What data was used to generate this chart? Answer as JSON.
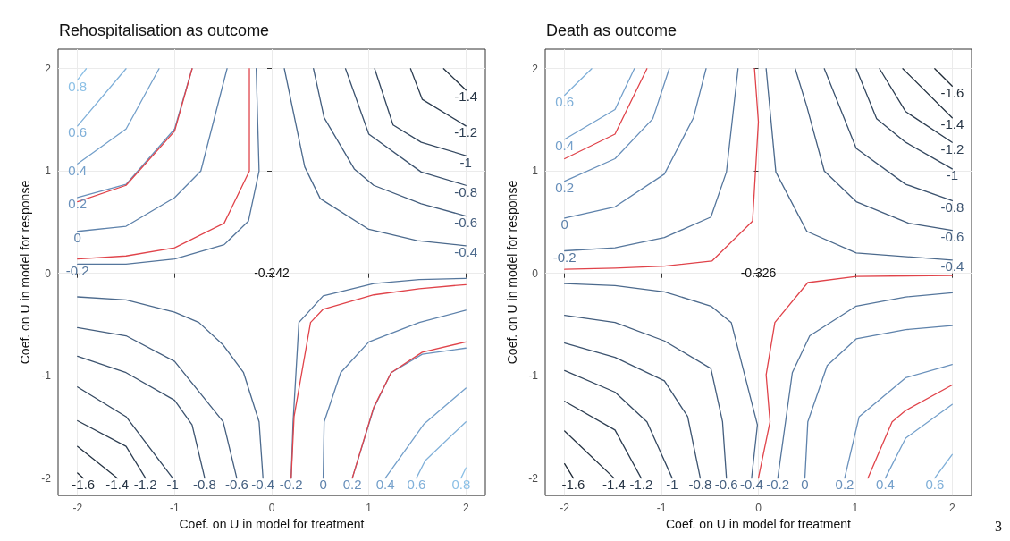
{
  "chart_data": [
    {
      "type": "line",
      "title": "Rehospitalisation as outcome",
      "xlabel": "Coef. on U in model for treatment",
      "ylabel": "Coef. on U in model for response",
      "xlim": [
        -2.2,
        2.2
      ],
      "ylim": [
        -2.17,
        2.19
      ],
      "xticks": [
        -2,
        -1,
        0,
        1,
        2
      ],
      "yticks": [
        -2,
        -1,
        0,
        1,
        2
      ],
      "grid": true,
      "annotations": [
        "-0.242"
      ],
      "series": [
        {
          "name": "0.8",
          "color": "#8cc0e6",
          "x": [
            -2,
            -1.91
          ],
          "values": [
            1.89,
            2
          ]
        },
        {
          "name": "0.6",
          "color": "#80b0d9",
          "x": [
            -2,
            -1.5
          ],
          "values": [
            1.44,
            2
          ]
        },
        {
          "name": "0.4",
          "color": "#74a0cb",
          "x": [
            -2,
            -1.5,
            -1.16
          ],
          "values": [
            1.07,
            1.41,
            2
          ]
        },
        {
          "name": "0.2",
          "color": "#6990bb",
          "x": [
            -2,
            -1.5,
            -1,
            -0.82
          ],
          "values": [
            0.74,
            0.87,
            1.41,
            2
          ]
        },
        {
          "color": "#e0434a",
          "x": [
            -2,
            -1.5,
            -1,
            -0.82
          ],
          "values": [
            0.7,
            0.86,
            1.39,
            2
          ]
        },
        {
          "name": "0",
          "color": "#5e82ab",
          "x": [
            -2,
            -1.5,
            -1,
            -0.73,
            -0.46
          ],
          "values": [
            0.41,
            0.46,
            0.74,
            1,
            2
          ]
        },
        {
          "color": "#e0434a",
          "x": [
            -2,
            -1.5,
            -1,
            -0.49,
            -0.23,
            -0.23
          ],
          "values": [
            0.14,
            0.17,
            0.25,
            0.49,
            1,
            2
          ]
        },
        {
          "name": "-0.2",
          "color": "#55769c",
          "x": [
            -2,
            -1.5,
            -1,
            -0.49,
            -0.24,
            -0.13,
            -0.16
          ],
          "values": [
            0.09,
            0.09,
            0.14,
            0.28,
            0.51,
            1,
            2
          ]
        },
        {
          "name": "-0.4",
          "color": "#4c6a8d",
          "x": [
            2,
            1.5,
            1,
            0.5,
            0.34,
            0.13
          ],
          "values": [
            0.27,
            0.32,
            0.43,
            0.73,
            1.04,
            2
          ]
        },
        {
          "name": "-0.6",
          "color": "#445e7e",
          "x": [
            2,
            1.54,
            1.05,
            0.85,
            0.54,
            0.43
          ],
          "values": [
            0.56,
            0.68,
            0.86,
            1.02,
            1.52,
            2
          ]
        },
        {
          "name": "-0.8",
          "color": "#3c536f",
          "x": [
            2,
            1.54,
            1,
            0.76
          ],
          "values": [
            0.86,
            0.99,
            1.36,
            2
          ]
        },
        {
          "name": "-1",
          "color": "#344860",
          "x": [
            2,
            1.54,
            1.25,
            1.06
          ],
          "values": [
            1.15,
            1.28,
            1.45,
            2
          ]
        },
        {
          "name": "-1.2",
          "color": "#2d3e52",
          "x": [
            2,
            1.55,
            1.43
          ],
          "values": [
            1.44,
            1.7,
            2
          ]
        },
        {
          "name": "-1.4",
          "color": "#263444",
          "x": [
            2,
            1.77
          ],
          "values": [
            1.79,
            2
          ]
        },
        {
          "name": "-0.4",
          "color": "#4c6a8d",
          "x": [
            -0.09,
            -0.13,
            -0.29,
            -0.5,
            -0.75,
            -1,
            -1.5,
            -2
          ],
          "values": [
            -2,
            -1.45,
            -0.97,
            -0.7,
            -0.48,
            -0.38,
            -0.26,
            -0.23
          ]
        },
        {
          "name": "-0.6",
          "color": "#445e7e",
          "x": [
            -0.36,
            -0.5,
            -1,
            -1.5,
            -2
          ],
          "values": [
            -2,
            -1.45,
            -0.86,
            -0.61,
            -0.53
          ]
        },
        {
          "name": "-0.8",
          "color": "#3c536f",
          "x": [
            -0.69,
            -0.82,
            -1,
            -1.5,
            -2
          ],
          "values": [
            -2,
            -1.48,
            -1.24,
            -0.97,
            -0.81
          ]
        },
        {
          "name": "-1",
          "color": "#344860",
          "x": [
            -1.02,
            -1.5,
            -2
          ],
          "values": [
            -2,
            -1.4,
            -1.11
          ]
        },
        {
          "name": "-1.2",
          "color": "#2d3e52",
          "x": [
            -1.3,
            -1.5,
            -2
          ],
          "values": [
            -2,
            -1.69,
            -1.44
          ]
        },
        {
          "name": "-1.4",
          "color": "#263444",
          "x": [
            -1.59,
            -2
          ],
          "values": [
            -2,
            -1.69
          ]
        },
        {
          "name": "-1.6",
          "color": "#1f2a36",
          "x": [
            -1.94,
            -2
          ],
          "values": [
            -2,
            -1.95
          ]
        },
        {
          "name": "-0.2",
          "color": "#55769c",
          "x": [
            0.2,
            0.22,
            0.28,
            0.53,
            1.05,
            1.52,
            2
          ],
          "values": [
            -2,
            -1.45,
            -0.48,
            -0.22,
            -0.1,
            -0.06,
            -0.05
          ]
        },
        {
          "color": "#e0434a",
          "x": [
            0.2,
            0.23,
            0.4,
            0.53,
            1.05,
            1.52,
            2
          ],
          "values": [
            -2,
            -1.4,
            -0.48,
            -0.35,
            -0.21,
            -0.15,
            -0.11
          ]
        },
        {
          "name": "0",
          "color": "#5e82ab",
          "x": [
            0.53,
            0.54,
            0.71,
            1,
            1.52,
            2
          ],
          "values": [
            -2,
            -1.45,
            -0.97,
            -0.67,
            -0.48,
            -0.36
          ]
        },
        {
          "name": "0.2",
          "color": "#6990bb",
          "x": [
            0.83,
            1.05,
            1.23,
            1.55,
            2
          ],
          "values": [
            -2,
            -1.32,
            -0.97,
            -0.79,
            -0.73
          ]
        },
        {
          "color": "#e0434a",
          "x": [
            0.83,
            1.05,
            1.23,
            1.55,
            2
          ],
          "values": [
            -2,
            -1.31,
            -0.97,
            -0.77,
            -0.67
          ]
        },
        {
          "name": "0.4",
          "color": "#74a0cb",
          "x": [
            1.17,
            1.57,
            2
          ],
          "values": [
            -2,
            -1.47,
            -1.12
          ]
        },
        {
          "name": "0.6",
          "color": "#80b0d9",
          "x": [
            1.49,
            1.58,
            2
          ],
          "values": [
            -2,
            -1.83,
            -1.45
          ]
        },
        {
          "name": "0.8",
          "color": "#8cc0e6",
          "x": [
            1.95,
            2
          ],
          "values": [
            -2,
            -1.9
          ]
        }
      ]
    },
    {
      "type": "line",
      "title": "Death as outcome",
      "xlabel": "Coef. on U in model for treatment",
      "ylabel": "Coef. on U in model for response",
      "xlim": [
        -2.2,
        2.2
      ],
      "ylim": [
        -2.17,
        2.19
      ],
      "xticks": [
        -2,
        -1,
        0,
        1,
        2
      ],
      "yticks": [
        -2,
        -1,
        0,
        1,
        2
      ],
      "grid": true,
      "annotations": [
        "-0.326",
        "3"
      ],
      "series": [
        {
          "name": "0.6",
          "color": "#80b0d9",
          "x": [
            -2,
            -1.72
          ],
          "values": [
            1.74,
            2
          ]
        },
        {
          "name": "0.4",
          "color": "#74a0cb",
          "x": [
            -2,
            -1.48,
            -1.28
          ],
          "values": [
            1.31,
            1.6,
            2
          ]
        },
        {
          "color": "#e0434a",
          "x": [
            -2,
            -1.48,
            -1.15
          ],
          "values": [
            1.12,
            1.36,
            2
          ]
        },
        {
          "name": "0.2",
          "color": "#6990bb",
          "x": [
            -2,
            -1.48,
            -1.09,
            -0.92
          ],
          "values": [
            0.9,
            1.12,
            1.51,
            2
          ]
        },
        {
          "name": "0",
          "color": "#5e82ab",
          "x": [
            -2,
            -1.48,
            -0.97,
            -0.67,
            -0.54
          ],
          "values": [
            0.54,
            0.65,
            0.97,
            1.52,
            2
          ]
        },
        {
          "name": "-0.2",
          "color": "#55769c",
          "x": [
            -2,
            -1.48,
            -0.97,
            -0.49,
            -0.33,
            -0.21
          ],
          "values": [
            0.22,
            0.25,
            0.35,
            0.55,
            0.99,
            2
          ]
        },
        {
          "color": "#e0434a",
          "x": [
            -2,
            -1.48,
            -0.97,
            -0.48,
            -0.06,
            0,
            -0.04
          ],
          "values": [
            0.04,
            0.05,
            0.07,
            0.12,
            0.51,
            1.48,
            2
          ]
        },
        {
          "name": "-0.4",
          "color": "#4c6a8d",
          "x": [
            2,
            1.01,
            0.5,
            0.18,
            0.08
          ],
          "values": [
            0.13,
            0.2,
            0.41,
            0.99,
            2
          ]
        },
        {
          "name": "-0.6",
          "color": "#445e7e",
          "x": [
            2,
            1.55,
            1.01,
            0.68,
            0.5,
            0.38
          ],
          "values": [
            0.42,
            0.49,
            0.7,
            1,
            1.63,
            2
          ]
        },
        {
          "name": "-0.8",
          "color": "#3c536f",
          "x": [
            2,
            1.52,
            1.01,
            0.68
          ],
          "values": [
            0.71,
            0.87,
            1.22,
            2
          ]
        },
        {
          "name": "-1",
          "color": "#344860",
          "x": [
            2,
            1.52,
            1.22,
            1.01
          ],
          "values": [
            1.02,
            1.28,
            1.51,
            2
          ]
        },
        {
          "name": "-1.2",
          "color": "#2d3e52",
          "x": [
            2,
            1.52,
            1.25
          ],
          "values": [
            1.28,
            1.58,
            2
          ]
        },
        {
          "name": "-1.4",
          "color": "#263444",
          "x": [
            2,
            1.49
          ],
          "values": [
            1.52,
            2
          ]
        },
        {
          "name": "-1.6",
          "color": "#1f2a36",
          "x": [
            2,
            1.82
          ],
          "values": [
            1.83,
            2
          ]
        },
        {
          "name": "-0.4",
          "color": "#4c6a8d",
          "x": [
            -0.07,
            -0.01,
            -0.28,
            -0.49,
            -0.97,
            -1.48,
            -2
          ],
          "values": [
            -2,
            -1.48,
            -0.48,
            -0.32,
            -0.18,
            -0.12,
            -0.1
          ]
        },
        {
          "name": "-0.6",
          "color": "#445e7e",
          "x": [
            -0.33,
            -0.37,
            -0.49,
            -0.97,
            -1.48,
            -2
          ],
          "values": [
            -2,
            -1.45,
            -0.93,
            -0.66,
            -0.48,
            -0.41
          ]
        },
        {
          "name": "-0.8",
          "color": "#3c536f",
          "x": [
            -0.6,
            -0.73,
            -0.97,
            -1.48,
            -2
          ],
          "values": [
            -2,
            -1.4,
            -1.05,
            -0.82,
            -0.68
          ]
        },
        {
          "name": "-1",
          "color": "#344860",
          "x": [
            -0.89,
            -1.15,
            -1.48,
            -2
          ],
          "values": [
            -2,
            -1.45,
            -1.16,
            -0.95
          ]
        },
        {
          "name": "-1.2",
          "color": "#2d3e52",
          "x": [
            -1.21,
            -1.48,
            -2
          ],
          "values": [
            -2,
            -1.53,
            -1.25
          ]
        },
        {
          "name": "-1.4",
          "color": "#263444",
          "x": [
            -1.49,
            -2
          ],
          "values": [
            -2,
            -1.54
          ]
        },
        {
          "name": "-1.6",
          "color": "#1f2a36",
          "x": [
            -1.91,
            -2
          ],
          "values": [
            -2,
            -1.86
          ]
        },
        {
          "color": "#e0434a",
          "x": [
            0,
            0.12,
            0.08,
            0.17,
            0.51,
            1.01,
            2
          ],
          "values": [
            -2,
            -1.45,
            -0.99,
            -0.48,
            -0.09,
            -0.03,
            -0.02
          ]
        },
        {
          "name": "-0.2",
          "color": "#55769c",
          "x": [
            0.2,
            0.35,
            0.53,
            1.01,
            1.52,
            2
          ],
          "values": [
            -2,
            -0.97,
            -0.61,
            -0.32,
            -0.23,
            -0.19
          ]
        },
        {
          "name": "0",
          "color": "#5e82ab",
          "x": [
            0.48,
            0.51,
            0.71,
            1.01,
            1.52,
            2
          ],
          "values": [
            -2,
            -1.45,
            -0.9,
            -0.64,
            -0.55,
            -0.51
          ]
        },
        {
          "name": "0.2",
          "color": "#6990bb",
          "x": [
            0.89,
            1.04,
            1.52,
            2
          ],
          "values": [
            -2,
            -1.4,
            -1.02,
            -0.89
          ]
        },
        {
          "color": "#e0434a",
          "x": [
            1.13,
            1.38,
            1.52,
            2
          ],
          "values": [
            -2,
            -1.45,
            -1.34,
            -1.09
          ]
        },
        {
          "name": "0.4",
          "color": "#74a0cb",
          "x": [
            1.31,
            1.52,
            2
          ],
          "values": [
            -2,
            -1.61,
            -1.28
          ]
        },
        {
          "name": "0.6",
          "color": "#80b0d9",
          "x": [
            1.82,
            2
          ],
          "values": [
            -2,
            -1.77
          ]
        }
      ]
    }
  ]
}
